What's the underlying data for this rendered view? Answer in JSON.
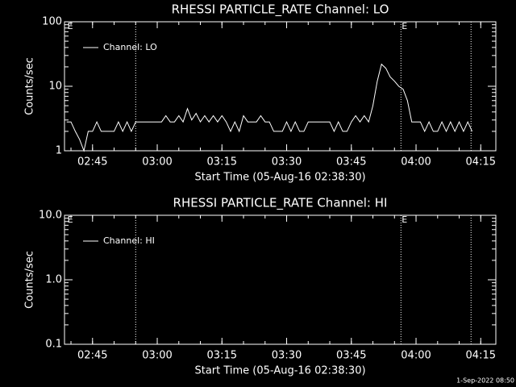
{
  "chart_data": [
    {
      "type": "line",
      "title": "RHESSI PARTICLE_RATE Channel: LO",
      "xlabel": "Start Time (05-Aug-16 02:38:30)",
      "ylabel": "Counts/sec",
      "xlim": [
        "02:38:30",
        "04:18:30"
      ],
      "xticks": [
        "02:45",
        "03:00",
        "03:15",
        "03:30",
        "03:45",
        "04:00",
        "04:15"
      ],
      "ylim": [
        1,
        100
      ],
      "yticks": [
        1,
        10,
        100
      ],
      "log_y": true,
      "vlines": [
        "02:55:00",
        "03:56:30",
        "04:12:45"
      ],
      "annotations": [
        {
          "x": "02:39:00",
          "label": "E"
        },
        {
          "x": "03:56:30",
          "label": "E"
        }
      ],
      "series": [
        {
          "name": "Channel: LO",
          "color": "#ffffff",
          "x": [
            "02:39",
            "02:40",
            "02:41",
            "02:42",
            "02:43",
            "02:44",
            "02:45",
            "02:46",
            "02:47",
            "02:48",
            "02:49",
            "02:50",
            "02:51",
            "02:52",
            "02:53",
            "02:54",
            "02:55",
            "02:56",
            "02:57",
            "02:58",
            "02:59",
            "03:00",
            "03:01",
            "03:02",
            "03:03",
            "03:04",
            "03:05",
            "03:06",
            "03:07",
            "03:08",
            "03:09",
            "03:10",
            "03:11",
            "03:12",
            "03:13",
            "03:14",
            "03:15",
            "03:16",
            "03:17",
            "03:18",
            "03:19",
            "03:20",
            "03:21",
            "03:22",
            "03:23",
            "03:24",
            "03:25",
            "03:26",
            "03:27",
            "03:28",
            "03:29",
            "03:30",
            "03:31",
            "03:32",
            "03:33",
            "03:34",
            "03:35",
            "03:36",
            "03:37",
            "03:38",
            "03:39",
            "03:40",
            "03:41",
            "03:42",
            "03:43",
            "03:44",
            "03:45",
            "03:46",
            "03:47",
            "03:48",
            "03:49",
            "03:50",
            "03:51",
            "03:52",
            "03:53",
            "03:54",
            "03:55",
            "03:56",
            "03:57",
            "03:58",
            "03:59",
            "04:00",
            "04:01",
            "04:02",
            "04:03",
            "04:04",
            "04:05",
            "04:06",
            "04:07",
            "04:08",
            "04:09",
            "04:10",
            "04:11",
            "04:12",
            "04:13"
          ],
          "values": [
            2.8,
            2.8,
            2,
            1.5,
            1,
            2,
            2,
            2.8,
            2,
            2,
            2,
            2,
            2.8,
            2,
            2.8,
            2,
            2.8,
            2.8,
            2.8,
            2.8,
            2.8,
            2.8,
            2.8,
            3.5,
            2.8,
            2.8,
            3.5,
            2.8,
            4.5,
            3,
            3.8,
            2.8,
            3.5,
            2.8,
            3.5,
            2.8,
            3.5,
            2.8,
            2,
            2.8,
            2,
            3.5,
            2.8,
            2.8,
            2.8,
            3.5,
            2.8,
            2.8,
            2,
            2,
            2,
            2.8,
            2,
            2.8,
            2,
            2,
            2.8,
            2.8,
            2.8,
            2.8,
            2.8,
            2.8,
            2,
            2.8,
            2,
            2,
            2.8,
            3.5,
            2.8,
            3.5,
            2.8,
            5,
            12,
            22,
            19,
            14,
            12,
            10,
            9,
            6,
            2.8,
            2.8,
            2.8,
            2,
            2.8,
            2,
            2,
            2.8,
            2,
            2.8,
            2,
            2.8,
            2,
            2.8,
            2
          ]
        }
      ]
    },
    {
      "type": "line",
      "title": "RHESSI PARTICLE_RATE Channel: HI",
      "xlabel": "Start Time (05-Aug-16 02:38:30)",
      "ylabel": "Counts/sec",
      "xlim": [
        "02:38:30",
        "04:18:30"
      ],
      "xticks": [
        "02:45",
        "03:00",
        "03:15",
        "03:30",
        "03:45",
        "04:00",
        "04:15"
      ],
      "ylim": [
        0.1,
        10
      ],
      "yticks": [
        {
          "value": 0.1,
          "label": "0.1"
        },
        {
          "value": 1,
          "label": "1.0"
        },
        {
          "value": 10,
          "label": "10.0"
        }
      ],
      "log_y": true,
      "vlines": [
        "02:55:00",
        "03:56:30",
        "04:12:45"
      ],
      "annotations": [
        {
          "x": "02:39:00",
          "label": "E"
        },
        {
          "x": "03:56:30",
          "label": "E"
        }
      ],
      "series": [
        {
          "name": "Channel: HI",
          "color": "#ffffff",
          "x": [],
          "values": []
        }
      ]
    }
  ],
  "timestamp": "1-Sep-2022 08:50"
}
